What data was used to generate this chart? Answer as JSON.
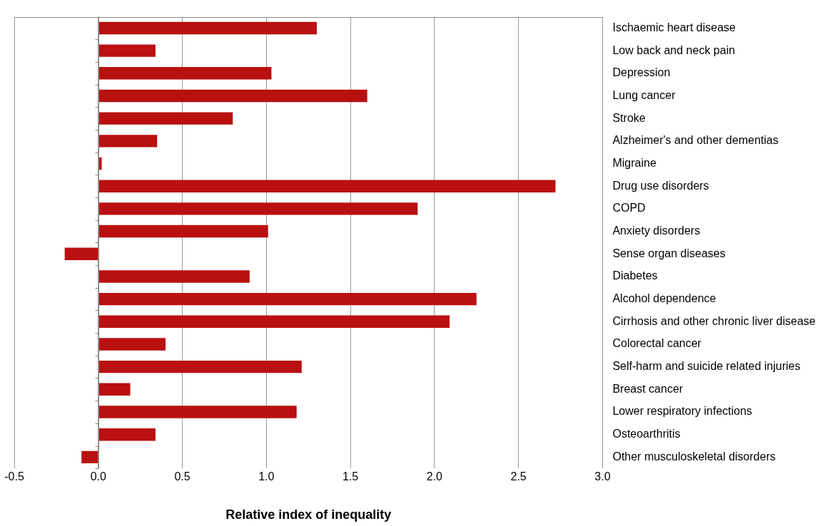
{
  "chart_data": {
    "type": "bar",
    "orientation": "horizontal",
    "xlabel": "Relative index of inequality",
    "categories": [
      "Ischaemic heart disease",
      "Low back and neck pain",
      "Depression",
      "Lung cancer",
      "Stroke",
      "Alzheimer's and other dementias",
      "Migraine",
      "Drug use disorders",
      "COPD",
      "Anxiety disorders",
      "Sense organ diseases",
      "Diabetes",
      "Alcohol dependence",
      "Cirrhosis and other chronic liver disease",
      "Colorectal cancer",
      "Self-harm and suicide related injuries",
      "Breast cancer",
      "Lower respiratory infections",
      "Osteoarthritis",
      "Other musculoskeletal disorders"
    ],
    "values": [
      1.3,
      0.34,
      1.03,
      1.6,
      0.8,
      0.35,
      0.02,
      2.72,
      1.9,
      1.01,
      -0.2,
      0.9,
      2.25,
      2.09,
      0.4,
      1.21,
      0.19,
      1.18,
      0.34,
      -0.1
    ],
    "color": "#b91010",
    "xlim": [
      -0.5,
      3.0
    ],
    "xticks": [
      {
        "value": -0.5,
        "label": "-0.5"
      },
      {
        "value": 0,
        "label": "0.0"
      },
      {
        "value": 0.5,
        "label": "0.5"
      },
      {
        "value": 1,
        "label": "1.0"
      },
      {
        "value": 1.5,
        "label": "1.5"
      },
      {
        "value": 2,
        "label": "2.0"
      },
      {
        "value": 2.5,
        "label": "2.5"
      },
      {
        "value": 3,
        "label": "3.0"
      }
    ],
    "grid": "x",
    "legend": false
  }
}
